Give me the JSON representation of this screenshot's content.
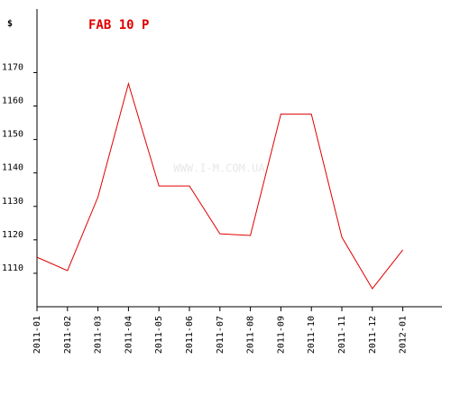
{
  "chart_data": {
    "type": "line",
    "title": "FAB 10 P",
    "y_unit": "$",
    "watermark": "WWW.I-M.COM.UA",
    "categories": [
      "2011-01",
      "2011-02",
      "2011-03",
      "2011-04",
      "2011-05",
      "2011-06",
      "2011-07",
      "2011-08",
      "2011-09",
      "2011-10",
      "2011-11",
      "2011-12",
      "2012-01"
    ],
    "series": [
      {
        "name": "FAB 10 P",
        "color": "#e00000",
        "values": [
          1114.8,
          1110.8,
          1132.8,
          1166.7,
          1136.1,
          1136.1,
          1121.8,
          1121.3,
          1157.6,
          1157.6,
          1120.8,
          1105.4,
          1117
        ]
      }
    ],
    "ylim": [
      1100,
      1189
    ],
    "yticks": [
      1110,
      1120,
      1130,
      1140,
      1150,
      1160,
      1170
    ]
  }
}
